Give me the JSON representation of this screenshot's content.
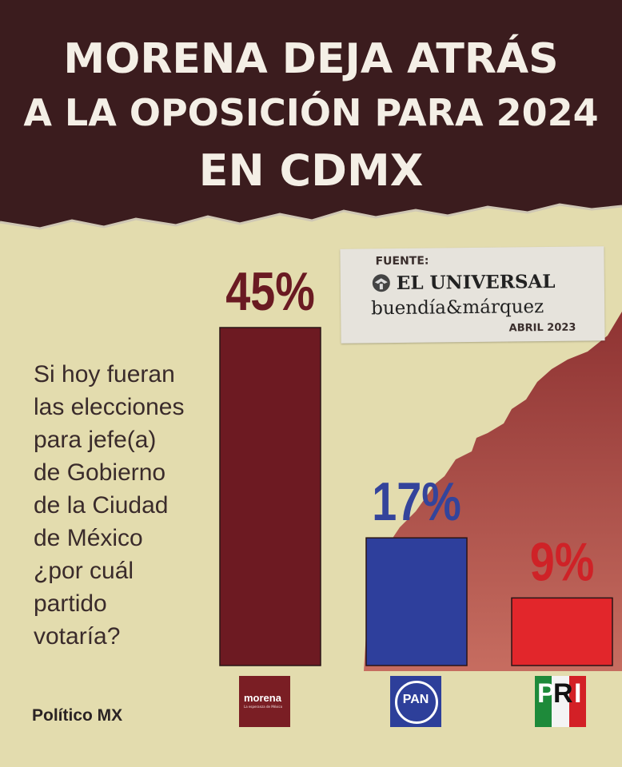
{
  "header": {
    "title_line1": "MORENA DEJA ATRÁS",
    "title_line2": "A LA OPOSICIÓN PARA 2024",
    "title_line3": "EN CDMX"
  },
  "source": {
    "label": "FUENTE:",
    "line1": "EL UNIVERSAL",
    "line2": "buendía&márquez",
    "date": "ABRIL 2023"
  },
  "question": {
    "lines": [
      "Si hoy fueran",
      "las elecciones",
      "para jefe(a)",
      "de Gobierno",
      "de la Ciudad",
      "de México",
      "¿por cuál",
      "partido",
      "votaría?"
    ]
  },
  "chart_data": {
    "type": "bar",
    "title": "",
    "xlabel": "",
    "ylabel": "",
    "categories": [
      "Morena",
      "PAN",
      "PRI"
    ],
    "values": [
      45,
      17,
      9
    ],
    "data_labels": [
      "45%",
      "17%",
      "9%"
    ],
    "ylim": [
      0,
      45
    ],
    "grid": false,
    "colors": [
      "#6d1a22",
      "#2e3f9c",
      "#e2262b"
    ],
    "label_colors": [
      "#6a1a22",
      "#34449b",
      "#cf2227"
    ]
  },
  "party_logos": {
    "morena": {
      "name": "morena",
      "slogan": "La esperanza de México"
    },
    "pan": {
      "name": "PAN"
    },
    "pri": {
      "letters": [
        "P",
        "R",
        "I"
      ]
    }
  },
  "brand": {
    "name": "Político MX"
  },
  "colors": {
    "header_bg": "#3b1c1e",
    "paper": "#e3dcae",
    "diagonal_gradient_top": "#8a2a2c",
    "diagonal_gradient_bottom": "#c5675c"
  }
}
